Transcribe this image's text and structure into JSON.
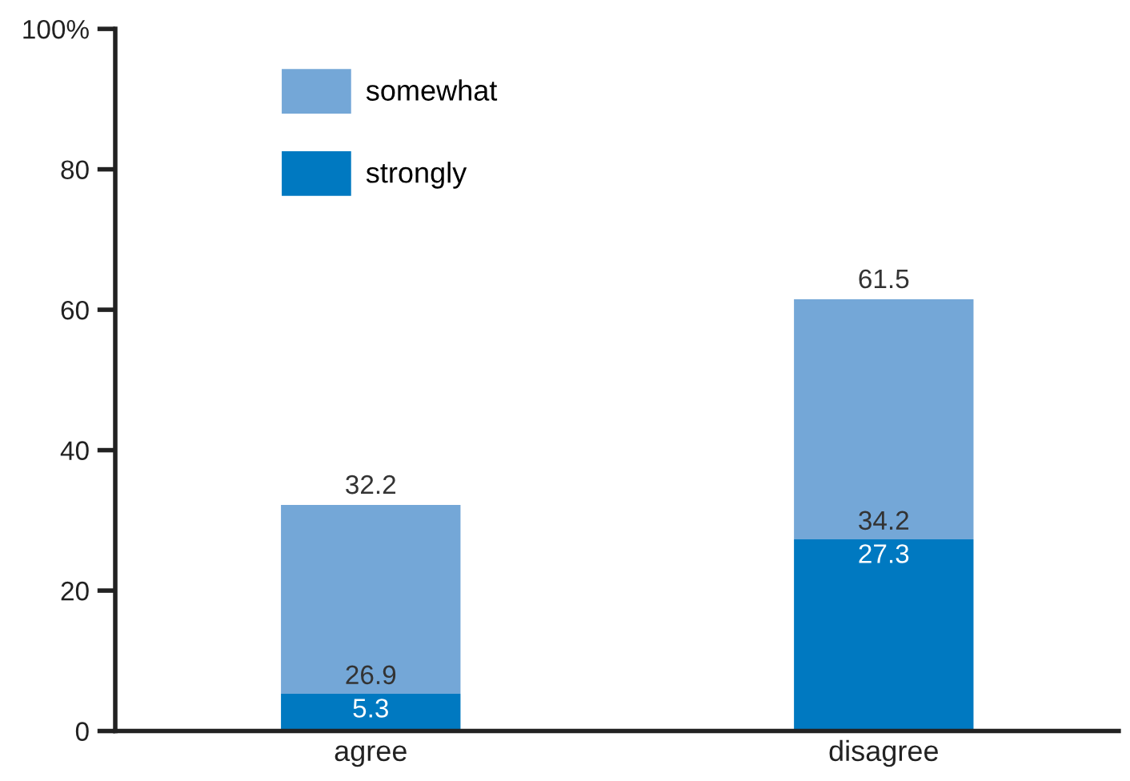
{
  "chart_data": {
    "type": "bar",
    "stacked": true,
    "categories": [
      "agree",
      "disagree"
    ],
    "series": [
      {
        "name": "strongly",
        "color": "#0079c1",
        "values": [
          5.3,
          27.3
        ],
        "value_labels": [
          "5.3",
          "27.3"
        ]
      },
      {
        "name": "somewhat",
        "color": "#74a7d7",
        "values": [
          26.9,
          34.2
        ],
        "value_labels": [
          "26.9",
          "34.2"
        ]
      }
    ],
    "totals": [
      "32.2",
      "61.5"
    ],
    "ylim": [
      0,
      100
    ],
    "yticks": [
      0,
      20,
      40,
      60,
      80,
      {
        "value": 100,
        "label": "100%"
      }
    ],
    "grid": false,
    "legend": "top left"
  }
}
